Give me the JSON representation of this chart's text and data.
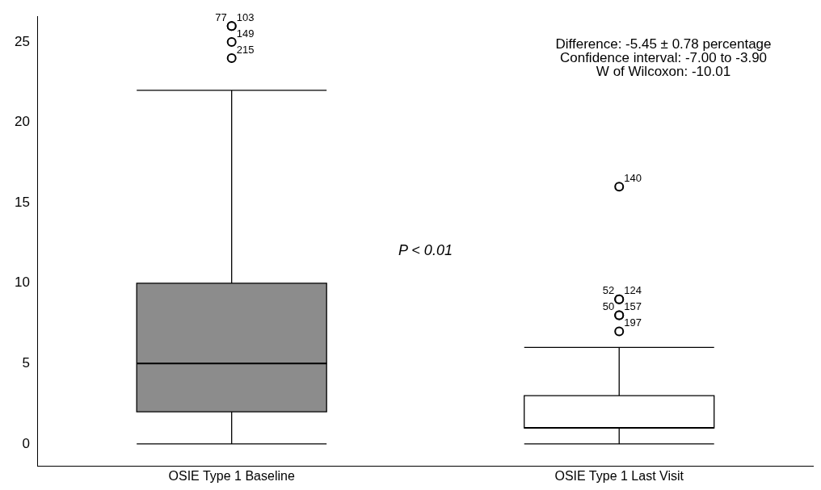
{
  "chart_data": {
    "type": "box",
    "categories": [
      "OSIE Type 1 Baseline",
      "OSIE Type 1 Last Visit"
    ],
    "boxes": [
      {
        "low": 0,
        "q1": 2,
        "median": 5,
        "q3": 10,
        "high": 22,
        "outliers": [
          26,
          26,
          25,
          24
        ]
      },
      {
        "low": 0,
        "q1": 1,
        "median": 1,
        "q3": 3,
        "high": 6,
        "outliers": [
          16,
          9,
          9,
          8,
          8,
          7
        ]
      }
    ],
    "colors": [
      "#8c8c8c",
      "#ffffff"
    ],
    "ylim": [
      -1.4,
      26.6
    ],
    "yticks": [
      0,
      5,
      10,
      15,
      20,
      25
    ],
    "grid": false,
    "legend": false,
    "marker": "circle",
    "annotations": [
      "Difference: -5.45 ± 0.78 percentage",
      "Confidence interval: -7.00 to -3.90",
      "W of Wilcoxon: -10.01",
      "P < 0.01",
      "77",
      "103",
      "149",
      "215",
      "140",
      "52",
      "124",
      "50",
      "157",
      "197"
    ]
  }
}
